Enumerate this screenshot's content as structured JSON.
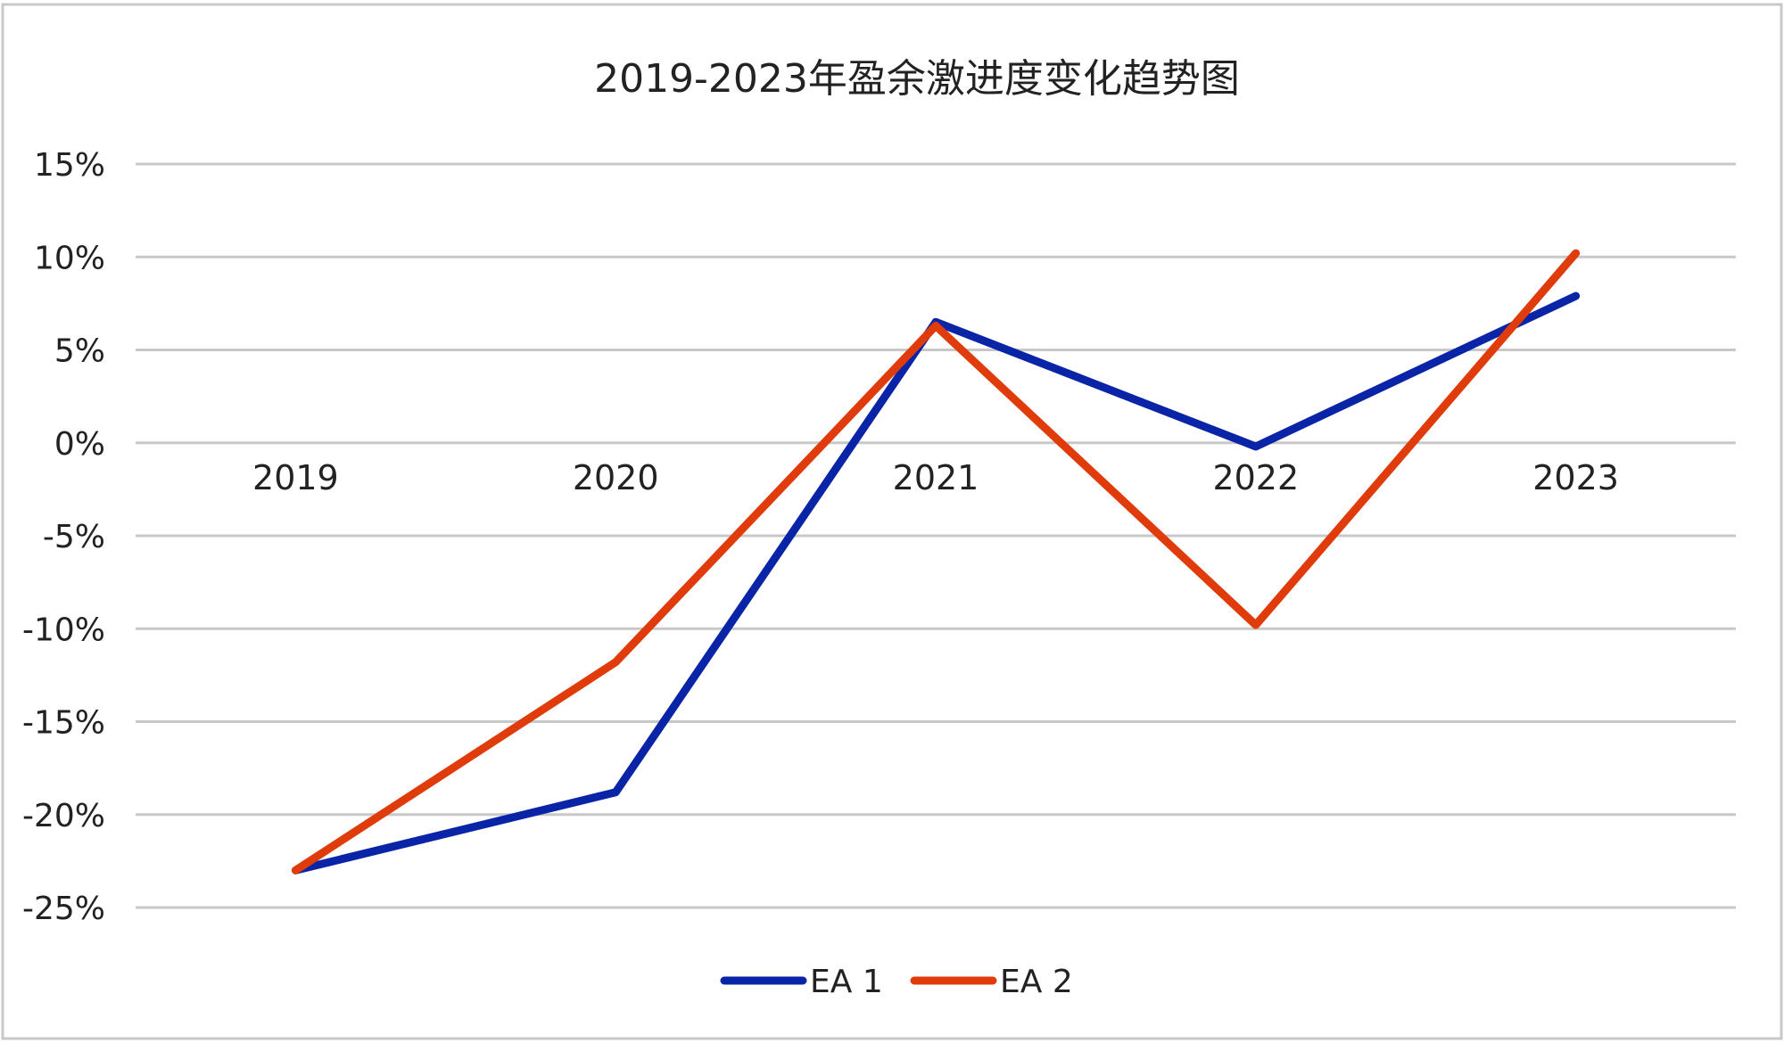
{
  "colors": {
    "background": "#ffffff",
    "frame": "#c8c8c8",
    "grid": "#c8c8c8",
    "text": "#222222"
  },
  "chart_data": {
    "type": "line",
    "title": "2019-2023年盈余激进度变化趋势图",
    "xlabel": "",
    "ylabel": "",
    "categories": [
      "2019",
      "2020",
      "2021",
      "2022",
      "2023"
    ],
    "y_ticks": [
      15,
      10,
      5,
      0,
      -5,
      -10,
      -15,
      -20,
      -25
    ],
    "y_tick_labels": [
      "15%",
      "10%",
      "5%",
      "0%",
      "-5%",
      "-10%",
      "-15%",
      "-20%",
      "-25%"
    ],
    "ylim": [
      -25,
      15
    ],
    "y_unit": "%",
    "grid": true,
    "legend_position": "bottom-center",
    "series": [
      {
        "name": "EA 1",
        "color": "#0a24a8",
        "values": [
          -23.0,
          -18.8,
          6.5,
          -0.2,
          7.9
        ]
      },
      {
        "name": "EA 2",
        "color": "#e03c0b",
        "values": [
          -23.0,
          -11.8,
          6.3,
          -9.8,
          10.2
        ]
      }
    ]
  }
}
